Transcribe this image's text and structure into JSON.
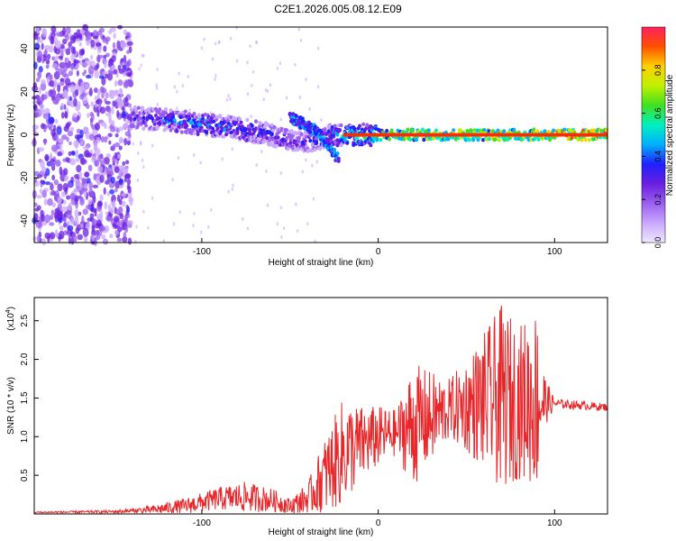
{
  "title": "C2E1.2026.005.08.12.E09",
  "colors": {
    "snr_line": "#e8272b",
    "background": "#ffffff",
    "axis": "#000000"
  },
  "chart_data": [
    {
      "type": "heatmap",
      "name": "spectrogram",
      "xlabel": "Height of straight line (km)",
      "ylabel": "Frequency (Hz)",
      "xlim": [
        -195,
        130
      ],
      "ylim": [
        -50,
        50
      ],
      "xticks": [
        -100,
        0,
        100
      ],
      "yticks": [
        -40,
        -20,
        0,
        20,
        40
      ],
      "colorbar": {
        "label": "Normalized spectral amplitude",
        "range": [
          0,
          1
        ],
        "ticks": [
          "0.0",
          "0.2",
          "0.4",
          "0.6",
          "0.8"
        ],
        "tick_values": [
          0.0,
          0.2,
          0.4,
          0.6,
          0.8
        ],
        "colors": [
          "#f0e8ff",
          "#c9a8ff",
          "#9a5ff0",
          "#6a1fe0",
          "#2020ff",
          "#00b0ff",
          "#00f0c0",
          "#40e020",
          "#c0f000",
          "#ffd000",
          "#ff5000",
          "#ff2060"
        ]
      },
      "noise_region_x": [
        -195,
        -140
      ],
      "signal_track": [
        {
          "x": -140,
          "y": 8,
          "amp": 0.35
        },
        {
          "x": -120,
          "y": 7,
          "amp": 0.45
        },
        {
          "x": -100,
          "y": 5,
          "amp": 0.5
        },
        {
          "x": -80,
          "y": 3,
          "amp": 0.45
        },
        {
          "x": -60,
          "y": 0,
          "amp": 0.4
        },
        {
          "x": -45,
          "y": -4,
          "amp": 0.35
        },
        {
          "x": -25,
          "y": 0,
          "amp": 0.5
        },
        {
          "x": 0,
          "y": 0,
          "amp": 0.7
        },
        {
          "x": 20,
          "y": 0,
          "amp": 0.8
        },
        {
          "x": 50,
          "y": 0,
          "amp": 0.85
        },
        {
          "x": 90,
          "y": 0,
          "amp": 0.9
        },
        {
          "x": 130,
          "y": 0,
          "amp": 1.0
        }
      ],
      "secondary_track": [
        {
          "x": -50,
          "y": 8
        },
        {
          "x": -35,
          "y": 2
        },
        {
          "x": -22,
          "y": -12
        }
      ]
    },
    {
      "type": "line",
      "name": "snr",
      "xlabel": "Height of straight line (km)",
      "ylabel": "SNR (10 * v/v)",
      "scale_label": "(x10",
      "scale_exp": "4",
      "scale_close": ")",
      "xlim": [
        -195,
        130
      ],
      "ylim": [
        0,
        2.8
      ],
      "xticks": [
        -100,
        0,
        100
      ],
      "yticks": [
        "0.5",
        "1.0",
        "1.5",
        "2.0",
        "2.5"
      ],
      "ytick_values": [
        0.5,
        1.0,
        1.5,
        2.0,
        2.5
      ],
      "envelope": [
        {
          "x": -195,
          "base": 0.02,
          "spread": 0.01
        },
        {
          "x": -150,
          "base": 0.03,
          "spread": 0.02
        },
        {
          "x": -130,
          "base": 0.05,
          "spread": 0.05
        },
        {
          "x": -110,
          "base": 0.1,
          "spread": 0.1
        },
        {
          "x": -90,
          "base": 0.2,
          "spread": 0.15
        },
        {
          "x": -75,
          "base": 0.22,
          "spread": 0.2
        },
        {
          "x": -60,
          "base": 0.18,
          "spread": 0.15
        },
        {
          "x": -50,
          "base": 0.1,
          "spread": 0.1
        },
        {
          "x": -40,
          "base": 0.2,
          "spread": 0.2
        },
        {
          "x": -30,
          "base": 0.5,
          "spread": 0.5
        },
        {
          "x": -20,
          "base": 0.8,
          "spread": 0.7
        },
        {
          "x": -10,
          "base": 0.9,
          "spread": 0.5
        },
        {
          "x": 0,
          "base": 1.0,
          "spread": 0.4
        },
        {
          "x": 10,
          "base": 1.05,
          "spread": 0.3
        },
        {
          "x": 20,
          "base": 1.15,
          "spread": 0.8
        },
        {
          "x": 30,
          "base": 1.25,
          "spread": 0.6
        },
        {
          "x": 40,
          "base": 1.35,
          "spread": 0.4
        },
        {
          "x": 50,
          "base": 1.4,
          "spread": 0.6
        },
        {
          "x": 60,
          "base": 1.45,
          "spread": 0.9
        },
        {
          "x": 70,
          "base": 1.5,
          "spread": 1.2
        },
        {
          "x": 80,
          "base": 1.45,
          "spread": 1.0
        },
        {
          "x": 90,
          "base": 1.5,
          "spread": 1.2
        },
        {
          "x": 95,
          "base": 1.45,
          "spread": 0.3
        },
        {
          "x": 100,
          "base": 1.43,
          "spread": 0.06
        },
        {
          "x": 130,
          "base": 1.38,
          "spread": 0.05
        }
      ]
    }
  ]
}
